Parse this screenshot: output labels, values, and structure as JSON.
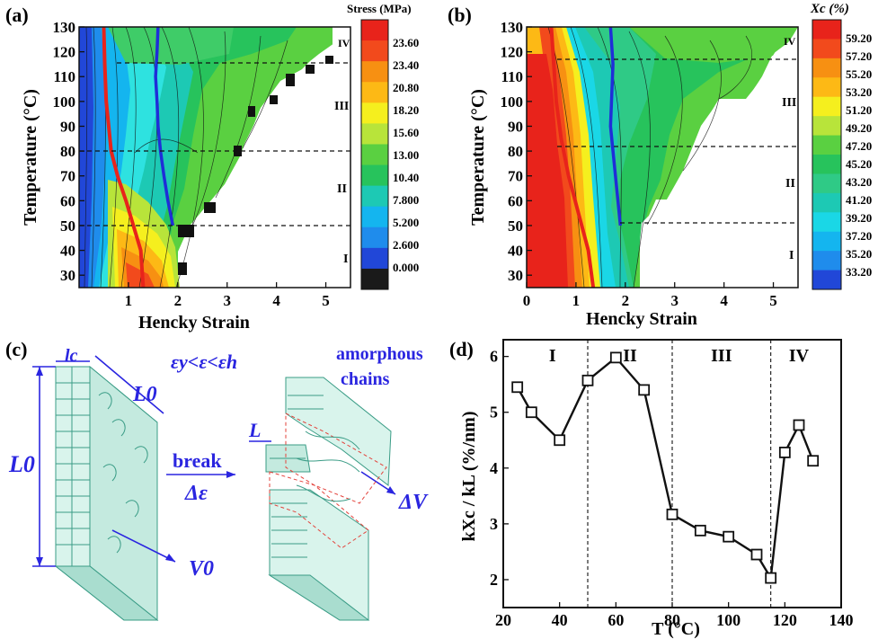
{
  "panels": {
    "a": {
      "tag": "(a)",
      "legend_title": "Stress (MPa)",
      "legend_levels": [
        "23.60",
        "23.40",
        "20.80",
        "18.20",
        "15.60",
        "13.00",
        "10.40",
        "7.800",
        "5.200",
        "2.600",
        "0.000"
      ],
      "legend_colors": [
        "#e8231b",
        "#f24a1c",
        "#f79012",
        "#fdb915",
        "#f5ef1e",
        "#b8e43a",
        "#5ad041",
        "#27c35c",
        "#1dc9b4",
        "#14b5ef",
        "#1f8cec",
        "#2147d8",
        "#1a1a1a"
      ],
      "regions": [
        "I",
        "II",
        "III",
        "IV"
      ]
    },
    "b": {
      "tag": "(b)",
      "legend_title": "Xc (%)",
      "legend_levels": [
        "59.20",
        "57.20",
        "55.20",
        "53.20",
        "51.20",
        "49.20",
        "47.20",
        "45.20",
        "43.20",
        "41.20",
        "39.20",
        "37.20",
        "35.20",
        "33.20"
      ],
      "legend_colors": [
        "#e8231b",
        "#f24a1c",
        "#f79012",
        "#fdb915",
        "#f5ef1e",
        "#b8e43a",
        "#5ad041",
        "#27c35c",
        "#2fca86",
        "#1dc9b4",
        "#1ad7e6",
        "#14b5ef",
        "#1f8cec",
        "#2147d8"
      ],
      "regions": [
        "I",
        "II",
        "III",
        "IV"
      ]
    },
    "c": {
      "tag": "(c)",
      "labels": {
        "lc": "lc",
        "L0_top": "L0",
        "condition": "εy<ε<εh",
        "amorphous": "amorphous",
        "chains": "chains",
        "L": "L",
        "break": "break",
        "delta_eps": "Δε",
        "L0_left": "L0",
        "V0": "V0",
        "dV": "ΔV"
      }
    },
    "d": {
      "tag": "(d)"
    }
  },
  "chart_data": [
    {
      "type": "heatmap",
      "panel": "a",
      "xlabel": "Hencky Strain",
      "ylabel": "Temperature (°C)",
      "xticks": [
        "1",
        "2",
        "3",
        "4",
        "5"
      ],
      "yticks": [
        "30",
        "40",
        "50",
        "60",
        "70",
        "80",
        "90",
        "100",
        "110",
        "120",
        "130"
      ],
      "xlim": [
        0,
        5.5
      ],
      "ylim": [
        25,
        130
      ],
      "colorbar_label": "Stress (MPa)",
      "region_boundaries_temperature": [
        50,
        80,
        115
      ],
      "region_labels": [
        "I",
        "II",
        "III",
        "IV"
      ],
      "red_curve": {
        "x": [
          1.3,
          1.25,
          1.1,
          0.95,
          0.78,
          0.65,
          0.6,
          0.55,
          0.52,
          0.5
        ],
        "y": [
          25,
          40,
          50,
          60,
          70,
          80,
          90,
          100,
          115,
          130
        ]
      },
      "blue_curve": {
        "x": [
          1.9,
          1.8,
          1.72,
          1.65,
          1.6,
          1.58,
          1.55,
          1.58,
          1.6
        ],
        "y": [
          50,
          60,
          70,
          80,
          90,
          100,
          110,
          120,
          130
        ]
      }
    },
    {
      "type": "heatmap",
      "panel": "b",
      "xlabel": "Hencky Strain",
      "ylabel": "Temperature (°C)",
      "xticks": [
        "0",
        "1",
        "2",
        "3",
        "4",
        "5"
      ],
      "yticks": [
        "30",
        "40",
        "50",
        "60",
        "70",
        "80",
        "90",
        "100",
        "110",
        "120",
        "130"
      ],
      "xlim": [
        0,
        5.5
      ],
      "ylim": [
        25,
        130
      ],
      "colorbar_label": "Xc (%)",
      "region_boundaries_temperature": [
        50,
        80,
        115
      ],
      "region_labels": [
        "I",
        "II",
        "III",
        "IV"
      ],
      "red_curve": {
        "x": [
          1.35,
          1.25,
          1.05,
          0.85,
          0.7,
          0.6,
          0.55,
          0.5
        ],
        "y": [
          25,
          40,
          55,
          70,
          85,
          100,
          115,
          130
        ]
      },
      "blue_curve": {
        "x": [
          1.9,
          1.85,
          1.8,
          1.75,
          1.7,
          1.72,
          1.75,
          1.7
        ],
        "y": [
          50,
          60,
          70,
          80,
          90,
          100,
          115,
          130
        ]
      }
    },
    {
      "type": "line",
      "panel": "d",
      "xlabel": "T (°C)",
      "ylabel": "kXc / kL (%/nm)",
      "xlim": [
        20,
        140
      ],
      "ylim": [
        1.5,
        6.3
      ],
      "xticks": [
        20,
        40,
        60,
        80,
        100,
        120,
        140
      ],
      "yticks": [
        2,
        3,
        4,
        5,
        6
      ],
      "region_lines": [
        50,
        80,
        115
      ],
      "region_labels": [
        "I",
        "II",
        "III",
        "IV"
      ],
      "series": [
        {
          "x": [
            25,
            30,
            40,
            50,
            60,
            70,
            80,
            90,
            100,
            110,
            115,
            120,
            125,
            130
          ],
          "y": [
            5.45,
            5.0,
            4.5,
            5.57,
            5.98,
            5.4,
            3.17,
            2.88,
            2.77,
            2.45,
            2.03,
            4.28,
            4.77,
            4.13
          ]
        }
      ]
    }
  ]
}
